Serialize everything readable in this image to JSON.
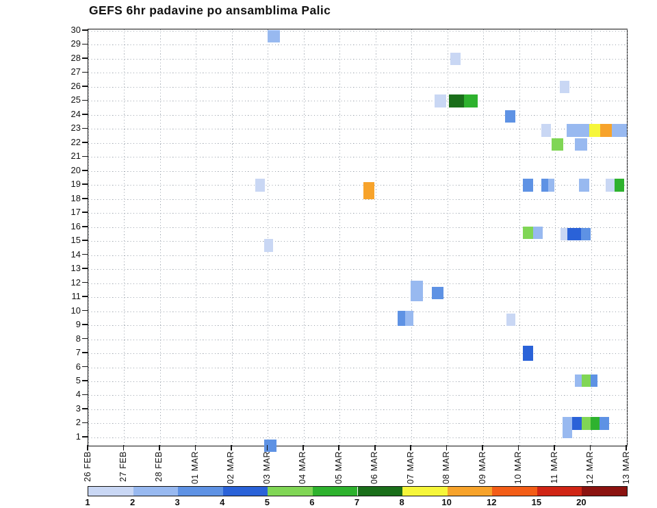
{
  "title": "GEFS 6hr padavine po ansamblima Palic",
  "chart_data": {
    "type": "heatmap",
    "title": "GEFS 6hr padavine po ansamblima Palic",
    "description_axes": {
      "x": "time, 6hr steps from 26 FEB to 13 MAR",
      "y": "ensemble member 1-30"
    },
    "grid": "dotted",
    "x_axis": {
      "tick_labels": [
        "26 FEB",
        "27 FEB",
        "28 FEB",
        "01 MAR",
        "02 MAR",
        "03 MAR",
        "04 MAR",
        "05 MAR",
        "06 MAR",
        "07 MAR",
        "08 MAR",
        "09 MAR",
        "10 MAR",
        "11 MAR",
        "12 MAR",
        "13 MAR"
      ]
    },
    "y_axis": {
      "range": [
        1,
        30
      ],
      "tick_labels": [
        "30",
        "29",
        "28",
        "27",
        "26",
        "25",
        "24",
        "23",
        "22",
        "21",
        "20",
        "19",
        "18",
        "17",
        "16",
        "15",
        "14",
        "13",
        "12",
        "11",
        "10",
        "9",
        "8",
        "7",
        "6",
        "5",
        "4",
        "3",
        "2",
        "1"
      ]
    },
    "colorbar": {
      "position": "bottom",
      "levels": [
        1,
        2,
        3,
        4,
        5,
        6,
        7,
        8,
        10,
        12,
        15,
        20
      ],
      "colors": [
        "#c9d7f4",
        "#98b9f0",
        "#5e92e4",
        "#2a62d8",
        "#80d655",
        "#2eb22e",
        "#1a6e1a",
        "#f6f63a",
        "#f7a32b",
        "#f35d17",
        "#d02515",
        "#8c1310"
      ]
    },
    "cells": [
      {
        "m": 29.6,
        "d": 5.0,
        "wd": 0.34,
        "v": 2
      },
      {
        "m": 28,
        "d": 10.08,
        "wd": 0.29,
        "v": 1
      },
      {
        "m": 26,
        "d": 13.13,
        "wd": 0.27,
        "v": 1
      },
      {
        "m": 25,
        "d": 9.64,
        "wd": 0.32,
        "v": 1
      },
      {
        "m": 25,
        "d": 10.04,
        "wd": 0.42,
        "v": 7
      },
      {
        "m": 25,
        "d": 10.46,
        "wd": 0.38,
        "v": 6
      },
      {
        "m": 23.9,
        "d": 11.61,
        "wd": 0.29,
        "v": 3
      },
      {
        "m": 22.9,
        "d": 12.62,
        "wd": 0.27,
        "v": 1
      },
      {
        "m": 22.9,
        "d": 13.32,
        "wd": 0.3,
        "v": 2
      },
      {
        "m": 22.9,
        "d": 13.62,
        "wd": 0.33,
        "v": 2
      },
      {
        "m": 22.9,
        "d": 13.95,
        "wd": 0.31,
        "v": 8
      },
      {
        "m": 22.9,
        "d": 14.26,
        "wd": 0.32,
        "v": 10
      },
      {
        "m": 22.9,
        "d": 14.58,
        "wd": 0.42,
        "v": 2
      },
      {
        "m": 21.9,
        "d": 12.9,
        "wd": 0.32,
        "v": 5
      },
      {
        "m": 21.9,
        "d": 13.55,
        "wd": 0.34,
        "v": 2
      },
      {
        "m": 19,
        "d": 4.65,
        "wd": 0.27,
        "v": 1
      },
      {
        "m": 18.6,
        "d": 7.66,
        "wd": 0.31,
        "v": 10,
        "hr": 1.3
      },
      {
        "m": 19,
        "d": 12.1,
        "wd": 0.29,
        "v": 3
      },
      {
        "m": 19,
        "d": 12.62,
        "wd": 0.19,
        "v": 3
      },
      {
        "m": 19,
        "d": 12.81,
        "wd": 0.17,
        "v": 2
      },
      {
        "m": 19,
        "d": 13.66,
        "wd": 0.29,
        "v": 2
      },
      {
        "m": 19,
        "d": 14.41,
        "wd": 0.25,
        "v": 1
      },
      {
        "m": 19,
        "d": 14.66,
        "wd": 0.27,
        "v": 6
      },
      {
        "m": 15.6,
        "d": 12.1,
        "wd": 0.29,
        "v": 5
      },
      {
        "m": 15.6,
        "d": 12.39,
        "wd": 0.27,
        "v": 2
      },
      {
        "m": 15.5,
        "d": 13.15,
        "wd": 0.19,
        "v": 1
      },
      {
        "m": 15.5,
        "d": 13.34,
        "wd": 0.38,
        "v": 4
      },
      {
        "m": 15.5,
        "d": 13.72,
        "wd": 0.27,
        "v": 3
      },
      {
        "m": 14.7,
        "d": 4.9,
        "wd": 0.25,
        "v": 1
      },
      {
        "m": 11.45,
        "d": 8.98,
        "wd": 0.34,
        "v": 2,
        "hr": 1.6
      },
      {
        "m": 11.3,
        "d": 9.57,
        "wd": 0.32,
        "v": 3
      },
      {
        "m": 9.5,
        "d": 8.61,
        "wd": 0.21,
        "v": 3,
        "hr": 1.2
      },
      {
        "m": 9.5,
        "d": 8.82,
        "wd": 0.23,
        "v": 2,
        "hr": 1.2
      },
      {
        "m": 9.4,
        "d": 11.65,
        "wd": 0.25,
        "v": 1
      },
      {
        "m": 7,
        "d": 12.1,
        "wd": 0.29,
        "v": 4,
        "hr": 1.2
      },
      {
        "m": 5.05,
        "d": 13.55,
        "wd": 0.19,
        "v": 2
      },
      {
        "m": 5.05,
        "d": 13.74,
        "wd": 0.25,
        "v": 5
      },
      {
        "m": 5.05,
        "d": 13.99,
        "wd": 0.19,
        "v": 3
      },
      {
        "m": 1.7,
        "d": 13.21,
        "wd": 0.27,
        "v": 2,
        "hr": 1.6
      },
      {
        "m": 2,
        "d": 13.47,
        "wd": 0.27,
        "v": 4
      },
      {
        "m": 2,
        "d": 13.74,
        "wd": 0.25,
        "v": 5
      },
      {
        "m": 2,
        "d": 13.99,
        "wd": 0.25,
        "v": 6
      },
      {
        "m": 2,
        "d": 14.24,
        "wd": 0.27,
        "v": 3
      },
      {
        "m": 0.4,
        "d": 4.9,
        "wd": 0.34,
        "v": 3
      }
    ]
  }
}
